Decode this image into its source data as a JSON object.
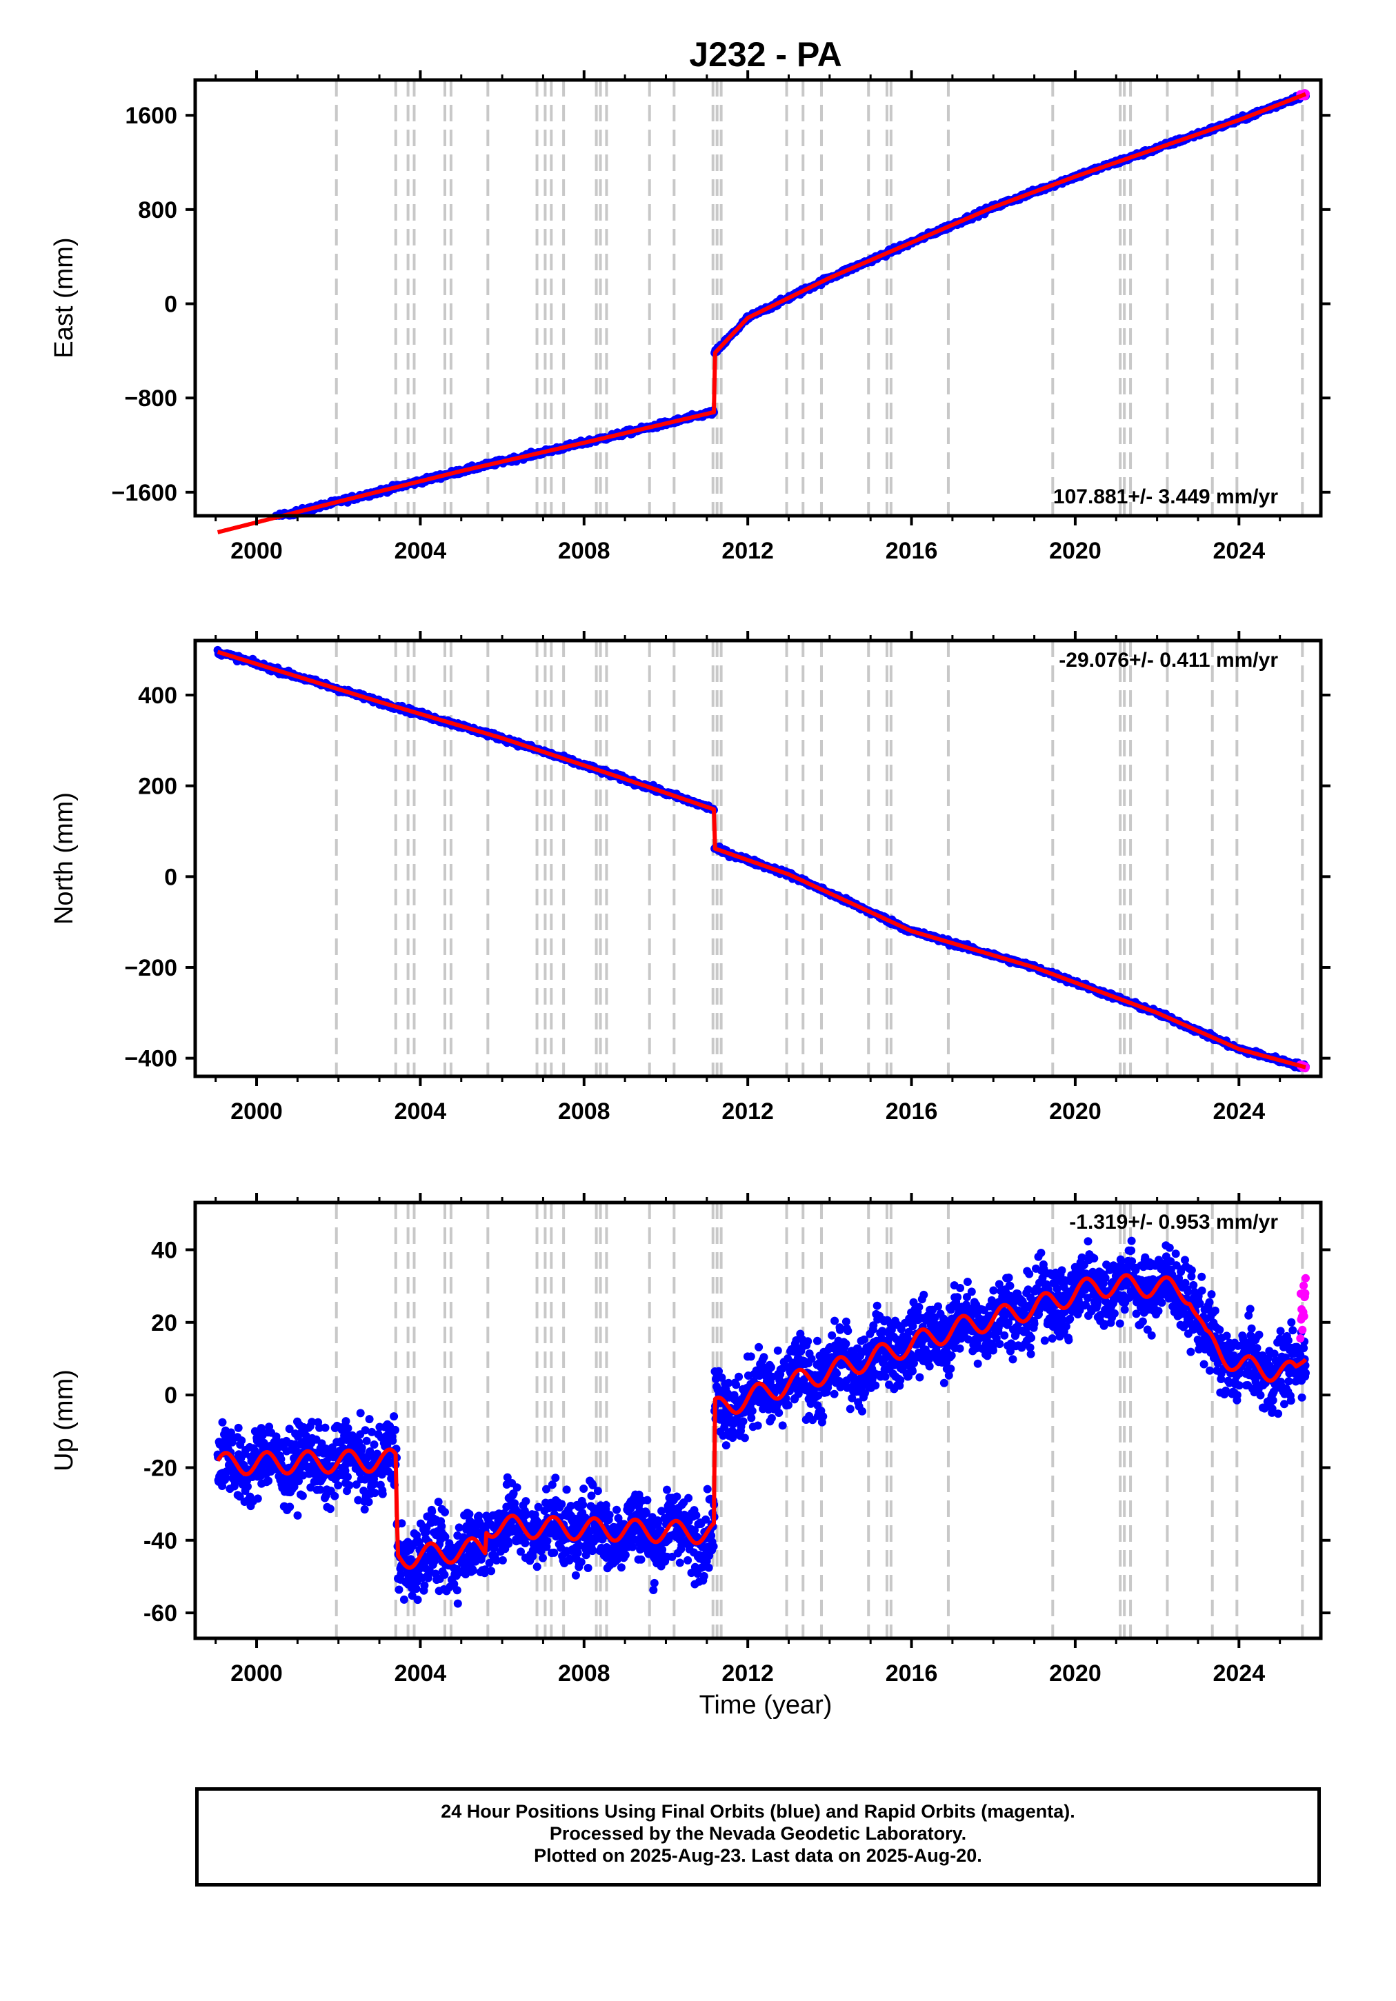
{
  "title": "J232 - PA",
  "xlabel": "Time (year)",
  "x_ticks": [
    "2000",
    "2004",
    "2008",
    "2012",
    "2016",
    "2020",
    "2024"
  ],
  "footer": {
    "line1": "24 Hour Positions Using Final Orbits (blue) and Rapid Orbits (magenta).",
    "line2": "Processed by the Nevada Geodetic Laboratory.",
    "line3": "Plotted on 2025-Aug-23. Last data on 2025-Aug-20."
  },
  "colors": {
    "final_orbits": "#0000ff",
    "rapid_orbits": "#ff00ff",
    "model": "#ff0000",
    "steps": "#c8c8c8",
    "axes": "#000000"
  },
  "chart_data": [
    {
      "type": "scatter",
      "id": "east",
      "ylabel": "East (mm)",
      "rate_label": "107.881+/- 3.449 mm/yr",
      "rate_position": "bottom-right",
      "xlim": [
        1998.5,
        2026.0
      ],
      "ylim": [
        -1800,
        1900
      ],
      "y_ticks": [
        -1600,
        -800,
        0,
        800,
        1600
      ],
      "y_tick_labels": [
        "−1600",
        "−800",
        "0",
        "800",
        "1600"
      ],
      "data_start": 1999.05,
      "data_end": 2025.63,
      "offset_epoch": 2011.19,
      "series": [
        {
          "name": "Final orbits",
          "color": "#0000ff",
          "trend": [
            [
              1999.05,
              -1940
            ],
            [
              2002.0,
              -1680
            ],
            [
              2005.0,
              -1420
            ],
            [
              2008.0,
              -1180
            ],
            [
              2011.18,
              -920
            ],
            [
              2011.19,
              -420
            ],
            [
              2012.0,
              -120
            ],
            [
              2014.0,
              220
            ],
            [
              2016.0,
              520
            ],
            [
              2018.0,
              820
            ],
            [
              2020.0,
              1080
            ],
            [
              2022.0,
              1320
            ],
            [
              2024.0,
              1560
            ],
            [
              2025.63,
              1780
            ]
          ],
          "scatter_mm": 15
        },
        {
          "name": "Rapid orbits",
          "color": "#ff00ff",
          "trend": [
            [
              2025.5,
              1765
            ],
            [
              2025.63,
              1780
            ]
          ],
          "scatter_mm": 10
        }
      ]
    },
    {
      "type": "scatter",
      "id": "north",
      "ylabel": "North (mm)",
      "rate_label": "-29.076+/- 0.411 mm/yr",
      "rate_position": "top-right",
      "xlim": [
        1998.5,
        2026.0
      ],
      "ylim": [
        -440,
        520
      ],
      "y_ticks": [
        -400,
        -200,
        0,
        200,
        400
      ],
      "y_tick_labels": [
        "−400",
        "−200",
        "0",
        "200",
        "400"
      ],
      "data_start": 1999.05,
      "data_end": 2025.63,
      "offset_epoch": 2011.19,
      "series": [
        {
          "name": "Final orbits",
          "color": "#0000ff",
          "trend": [
            [
              1999.05,
              495
            ],
            [
              2003.0,
              385
            ],
            [
              2006.0,
              305
            ],
            [
              2009.0,
              215
            ],
            [
              2011.18,
              148
            ],
            [
              2011.19,
              62
            ],
            [
              2013.0,
              5
            ],
            [
              2016.0,
              -120
            ],
            [
              2019.0,
              -200
            ],
            [
              2022.0,
              -300
            ],
            [
              2024.0,
              -380
            ],
            [
              2025.63,
              -420
            ]
          ],
          "scatter_mm": 4
        },
        {
          "name": "Rapid orbits",
          "color": "#ff00ff",
          "trend": [
            [
              2025.5,
              -416
            ],
            [
              2025.63,
              -420
            ]
          ],
          "scatter_mm": 2
        }
      ]
    },
    {
      "type": "scatter",
      "id": "up",
      "ylabel": "Up (mm)",
      "rate_label": "-1.319+/- 0.953 mm/yr",
      "rate_position": "top-right",
      "xlim": [
        1998.5,
        2026.0
      ],
      "ylim": [
        -67,
        53
      ],
      "y_ticks": [
        -60,
        -40,
        -20,
        0,
        20,
        40
      ],
      "y_tick_labels": [
        "-60",
        "-40",
        "-20",
        "0",
        "20",
        "40"
      ],
      "data_start": 1999.05,
      "data_end": 2025.63,
      "seasonal_amplitude_mm": 3,
      "series": [
        {
          "name": "Final orbits",
          "color": "#0000ff",
          "trend": [
            [
              1999.05,
              -19
            ],
            [
              2003.42,
              -18
            ],
            [
              2003.43,
              -45
            ],
            [
              2005.6,
              -42
            ],
            [
              2005.61,
              -36
            ],
            [
              2011.18,
              -38
            ],
            [
              2011.19,
              -4
            ],
            [
              2013.0,
              3
            ],
            [
              2015.0,
              10
            ],
            [
              2017.0,
              18
            ],
            [
              2019.0,
              24
            ],
            [
              2020.5,
              30
            ],
            [
              2022.0,
              30
            ],
            [
              2022.8,
              28
            ],
            [
              2023.2,
              15
            ],
            [
              2024.0,
              8
            ],
            [
              2025.4,
              6
            ],
            [
              2025.63,
              12
            ]
          ],
          "scatter_mm": 7
        },
        {
          "name": "Rapid orbits",
          "color": "#ff00ff",
          "trend": [
            [
              2025.5,
              22
            ],
            [
              2025.63,
              27
            ]
          ],
          "scatter_mm": 5
        }
      ]
    }
  ],
  "step_epochs": [
    2001.95,
    2003.4,
    2003.7,
    2003.85,
    2004.6,
    2004.75,
    2005.65,
    2006.85,
    2007.05,
    2007.2,
    2007.5,
    2008.3,
    2008.4,
    2008.55,
    2009.6,
    2010.2,
    2011.15,
    2011.25,
    2011.35,
    2012.95,
    2013.35,
    2013.8,
    2014.95,
    2015.4,
    2015.5,
    2016.9,
    2019.45,
    2021.1,
    2021.2,
    2021.35,
    2022.25,
    2023.35,
    2023.95,
    2025.55
  ]
}
